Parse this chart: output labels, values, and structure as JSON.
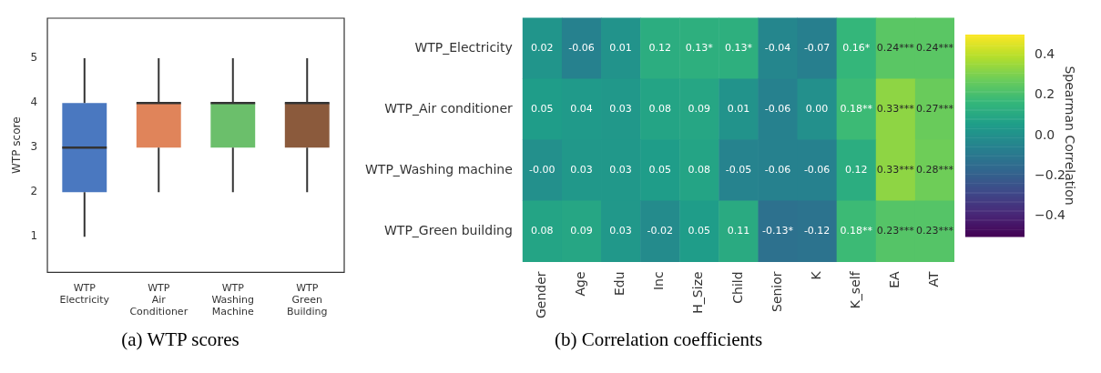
{
  "chart_data": [
    {
      "type": "box",
      "title": "(a)  WTP scores",
      "ylabel": "WTP score",
      "categories": [
        "WTP Electricity",
        "WTP Air Conditioner",
        "WTP Washing Machine",
        "WTP Green Building"
      ],
      "colors": [
        "#4a78c0",
        "#e0845a",
        "#6bbf6b",
        "#8b5a3c"
      ],
      "ylim": [
        0.2,
        5.9
      ],
      "yticks": [
        1,
        2,
        3,
        4,
        5
      ],
      "grid": false,
      "boxes": [
        {
          "low": 1,
          "q1": 2,
          "median": 3,
          "q3": 4,
          "high": 5
        },
        {
          "low": 2,
          "q1": 3,
          "median": 4,
          "q3": 4,
          "high": 5
        },
        {
          "low": 2,
          "q1": 3,
          "median": 4,
          "q3": 4,
          "high": 5
        },
        {
          "low": 2,
          "q1": 3,
          "median": 4,
          "q3": 4,
          "high": 5
        }
      ]
    },
    {
      "type": "heatmap",
      "title": "(b)  Correlation coefficients",
      "clabel": "Spearman Correlation",
      "categories": [
        "Gender",
        "Age",
        "Edu",
        "Inc",
        "H_Size",
        "Child",
        "Senior",
        "K",
        "K_self",
        "EA",
        "AT"
      ],
      "y_categories": [
        "WTP_Electricity",
        "WTP_Air conditioner",
        "WTP_Washing machine",
        "WTP_Green building"
      ],
      "cells": [
        [
          0.02,
          -0.06,
          0.01,
          0.12,
          0.13,
          0.13,
          -0.04,
          -0.07,
          0.16,
          0.24,
          0.24
        ],
        [
          0.05,
          0.04,
          0.03,
          0.08,
          0.09,
          0.01,
          -0.06,
          0.0,
          0.18,
          0.33,
          0.27
        ],
        [
          0.0,
          0.03,
          0.03,
          0.05,
          0.08,
          -0.05,
          -0.06,
          -0.06,
          0.12,
          0.33,
          0.28
        ],
        [
          0.08,
          0.09,
          0.03,
          -0.02,
          0.05,
          0.11,
          -0.13,
          -0.12,
          0.18,
          0.23,
          0.23
        ]
      ],
      "cell_labels": [
        [
          "0.02",
          "-0.06",
          "0.01",
          "0.12",
          "0.13*",
          "0.13*",
          "-0.04",
          "-0.07",
          "0.16*",
          "0.24***",
          "0.24***"
        ],
        [
          "0.05",
          "0.04",
          "0.03",
          "0.08",
          "0.09",
          "0.01",
          "-0.06",
          "0.00",
          "0.18**",
          "0.33***",
          "0.27***"
        ],
        [
          "-0.00",
          "0.03",
          "0.03",
          "0.05",
          "0.08",
          "-0.05",
          "-0.06",
          "-0.06",
          "0.12",
          "0.33***",
          "0.28***"
        ],
        [
          "0.08",
          "0.09",
          "0.03",
          "-0.02",
          "0.05",
          "0.11",
          "-0.13*",
          "-0.12",
          "0.18**",
          "0.23***",
          "0.23***"
        ]
      ],
      "clim": [
        -0.5,
        0.5
      ],
      "cticks": [
        {
          "value": -0.4,
          "label": "−0.4"
        },
        {
          "value": -0.2,
          "label": "−0.2"
        },
        {
          "value": 0,
          "label": "0.0"
        },
        {
          "value": 0.2,
          "label": "0.2"
        },
        {
          "value": 0.4,
          "label": "0.4"
        }
      ]
    }
  ]
}
